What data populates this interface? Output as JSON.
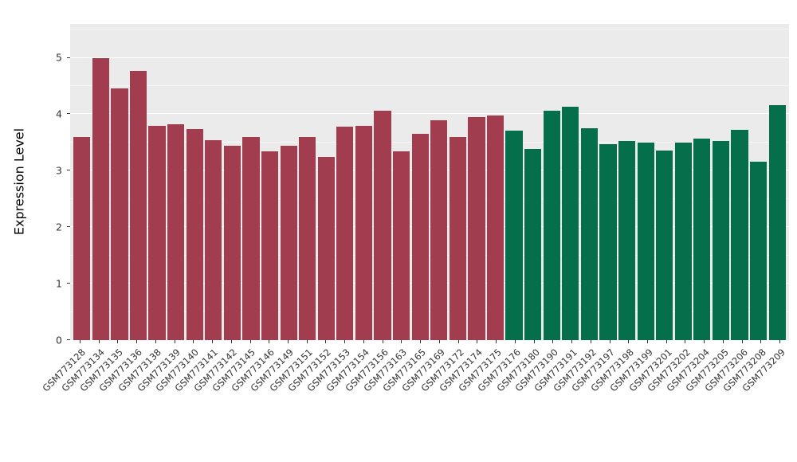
{
  "chart_data": {
    "type": "bar",
    "title": "",
    "xlabel": "",
    "ylabel": "Expression Level",
    "ylim": [
      0,
      5.6
    ],
    "yticks": [
      "0",
      "1",
      "2",
      "3",
      "4",
      "5"
    ],
    "ytick_values": [
      0,
      1,
      2,
      3,
      4,
      5
    ],
    "grid": "on",
    "legend": "none",
    "panel_background": "#EBEBEB",
    "gridline_color": "#FFFFFF",
    "axis_text_color": "#333333",
    "colors": {
      "group1": "#A13D4F",
      "group2": "#056F4C"
    },
    "categories": [
      "GSM773128",
      "GSM773134",
      "GSM773135",
      "GSM773136",
      "GSM773138",
      "GSM773139",
      "GSM773140",
      "GSM773141",
      "GSM773142",
      "GSM773145",
      "GSM773146",
      "GSM773149",
      "GSM773151",
      "GSM773152",
      "GSM773153",
      "GSM773154",
      "GSM773156",
      "GSM773163",
      "GSM773165",
      "GSM773169",
      "GSM773172",
      "GSM773174",
      "GSM773175",
      "GSM773176",
      "GSM773180",
      "GSM773190",
      "GSM773191",
      "GSM773192",
      "GSM773197",
      "GSM773198",
      "GSM773199",
      "GSM773201",
      "GSM773202",
      "GSM773204",
      "GSM773205",
      "GSM773206",
      "GSM773208",
      "GSM773209"
    ],
    "values": [
      3.6,
      5.0,
      4.46,
      4.77,
      3.8,
      3.82,
      3.74,
      3.54,
      3.44,
      3.6,
      3.34,
      3.44,
      3.6,
      3.24,
      3.78,
      3.8,
      4.06,
      3.34,
      3.65,
      3.9,
      3.6,
      3.95,
      3.98,
      3.71,
      3.38,
      4.06,
      4.13,
      3.75,
      3.47,
      3.53,
      3.5,
      3.36,
      3.5,
      3.57,
      3.53,
      3.73,
      3.16,
      4.16
    ],
    "groups": [
      "group1",
      "group1",
      "group1",
      "group1",
      "group1",
      "group1",
      "group1",
      "group1",
      "group1",
      "group1",
      "group1",
      "group1",
      "group1",
      "group1",
      "group1",
      "group1",
      "group1",
      "group1",
      "group1",
      "group1",
      "group1",
      "group1",
      "group1",
      "group2",
      "group2",
      "group2",
      "group2",
      "group2",
      "group2",
      "group2",
      "group2",
      "group2",
      "group2",
      "group2",
      "group2",
      "group2",
      "group2",
      "group2"
    ]
  }
}
